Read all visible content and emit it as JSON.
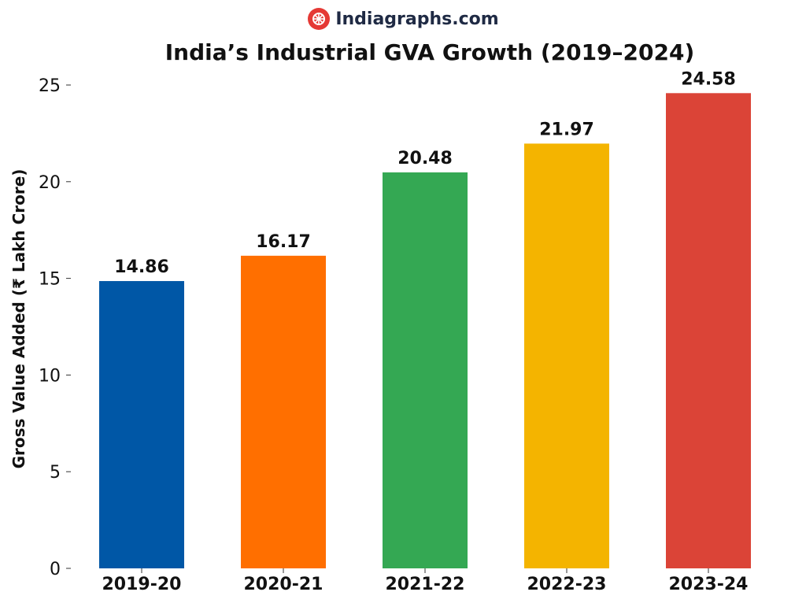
{
  "brand": {
    "name": "Indiagraphs.com",
    "icon": "logo-icon",
    "icon_color": "#e53935"
  },
  "chart_data": {
    "type": "bar",
    "title": "India’s Industrial GVA Growth (2019–2024)",
    "xlabel": "",
    "ylabel": "Gross Value Added (₹ Lakh Crore)",
    "categories": [
      "2019-20",
      "2020-21",
      "2021-22",
      "2022-23",
      "2023-24"
    ],
    "values": [
      14.86,
      16.17,
      20.48,
      21.97,
      24.58
    ],
    "value_labels": [
      "14.86",
      "16.17",
      "20.48",
      "21.97",
      "24.58"
    ],
    "colors": [
      "#0057a6",
      "#ff6f00",
      "#34a853",
      "#f4b400",
      "#db4437"
    ],
    "ylim": [
      0,
      25
    ],
    "yticks": [
      "0",
      "5",
      "10",
      "15",
      "20",
      "25"
    ],
    "grid": false,
    "legend": "none"
  }
}
